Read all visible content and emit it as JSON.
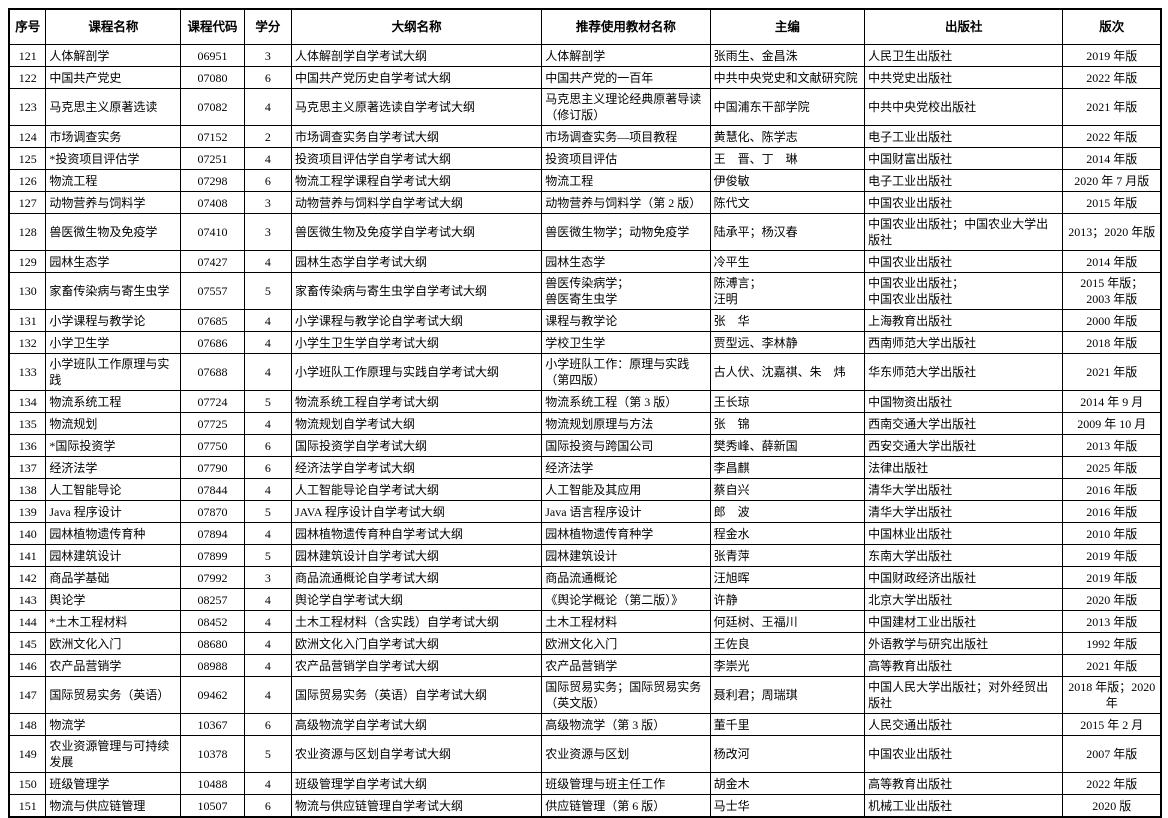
{
  "table": {
    "columns": [
      "序号",
      "课程名称",
      "课程代码",
      "学分",
      "大纲名称",
      "推荐使用教材名称",
      "主编",
      "出版社",
      "版次"
    ],
    "column_keys": [
      "seq",
      "course-name",
      "course-code",
      "credits",
      "outline-name",
      "textbook-name",
      "chief-editor",
      "publisher",
      "edition"
    ],
    "center_columns": [
      0,
      2,
      3,
      8
    ],
    "rows": [
      [
        "121",
        "人体解剖学",
        "06951",
        "3",
        "人体解剖学自学考试大纲",
        "人体解剖学",
        "张雨生、金昌洙",
        "人民卫生出版社",
        "2019 年版"
      ],
      [
        "122",
        "中国共产党史",
        "07080",
        "6",
        "中国共产党历史自学考试大纲",
        "中国共产党的一百年",
        "中共中央党史和文献研究院",
        "中共党史出版社",
        "2022 年版"
      ],
      [
        "123",
        "马克思主义原著选读",
        "07082",
        "4",
        "马克思主义原著选读自学考试大纲",
        "马克思主义理论经典原著导读（修订版）",
        "中国浦东干部学院",
        "中共中央党校出版社",
        "2021 年版"
      ],
      [
        "124",
        "市场调查实务",
        "07152",
        "2",
        "市场调查实务自学考试大纲",
        "市场调查实务—项目教程",
        "黄慧化、陈学志",
        "电子工业出版社",
        "2022 年版"
      ],
      [
        "125",
        "*投资项目评估学",
        "07251",
        "4",
        "投资项目评估学自学考试大纲",
        "投资项目评估",
        "王　晋、丁　琳",
        "中国财富出版社",
        "2014 年版"
      ],
      [
        "126",
        "物流工程",
        "07298",
        "6",
        "物流工程学课程自学考试大纲",
        "物流工程",
        "伊俊敏",
        "电子工业出版社",
        "2020 年 7 月版"
      ],
      [
        "127",
        "动物营养与饲料学",
        "07408",
        "3",
        "动物营养与饲料学自学考试大纲",
        "动物营养与饲料学（第 2 版）",
        "陈代文",
        "中国农业出版社",
        "2015 年版"
      ],
      [
        "128",
        "兽医微生物及免疫学",
        "07410",
        "3",
        "兽医微生物及免疫学自学考试大纲",
        "兽医微生物学；动物免疫学",
        "陆承平；杨汉春",
        "中国农业出版社；中国农业大学出版社",
        "2013；2020 年版"
      ],
      [
        "129",
        "园林生态学",
        "07427",
        "4",
        "园林生态学自学考试大纲",
        "园林生态学",
        "冷平生",
        "中国农业出版社",
        "2014 年版"
      ],
      [
        "130",
        "家畜传染病与寄生虫学",
        "07557",
        "5",
        "家畜传染病与寄生虫学自学考试大纲",
        "兽医传染病学；\n兽医寄生虫学",
        "陈溥言；\n汪明",
        "中国农业出版社；\n中国农业出版社",
        "2015 年版；\n2003 年版"
      ],
      [
        "131",
        "小学课程与教学论",
        "07685",
        "4",
        "小学课程与教学论自学考试大纲",
        "课程与教学论",
        "张　华",
        "上海教育出版社",
        "2000 年版"
      ],
      [
        "132",
        "小学卫生学",
        "07686",
        "4",
        "小学生卫生学自学考试大纲",
        "学校卫生学",
        "贾型远、李林静",
        "西南师范大学出版社",
        "2018 年版"
      ],
      [
        "133",
        "小学班队工作原理与实践",
        "07688",
        "4",
        "小学班队工作原理与实践自学考试大纲",
        "小学班队工作：原理与实践（第四版）",
        "古人伏、沈嘉祺、朱　炜",
        "华东师范大学出版社",
        "2021 年版"
      ],
      [
        "134",
        "物流系统工程",
        "07724",
        "5",
        "物流系统工程自学考试大纲",
        "物流系统工程（第 3 版）",
        "王长琼",
        "中国物资出版社",
        "2014 年 9 月"
      ],
      [
        "135",
        "物流规划",
        "07725",
        "4",
        "物流规划自学考试大纲",
        "物流规划原理与方法",
        "张　锦",
        "西南交通大学出版社",
        "2009 年 10 月"
      ],
      [
        "136",
        "*国际投资学",
        "07750",
        "6",
        "国际投资学自学考试大纲",
        "国际投资与跨国公司",
        "樊秀峰、薛新国",
        "西安交通大学出版社",
        "2013 年版"
      ],
      [
        "137",
        "经济法学",
        "07790",
        "6",
        "经济法学自学考试大纲",
        "经济法学",
        "李昌麒",
        "法律出版社",
        "2025 年版"
      ],
      [
        "138",
        "人工智能导论",
        "07844",
        "4",
        "人工智能导论自学考试大纲",
        "人工智能及其应用",
        "蔡自兴",
        "清华大学出版社",
        "2016 年版"
      ],
      [
        "139",
        "Java 程序设计",
        "07870",
        "5",
        "JAVA 程序设计自学考试大纲",
        "Java 语言程序设计",
        "郎　波",
        "清华大学出版社",
        "2016 年版"
      ],
      [
        "140",
        "园林植物遗传育种",
        "07894",
        "4",
        "园林植物遗传育种自学考试大纲",
        "园林植物遗传育种学",
        "程金水",
        "中国林业出版社",
        "2010 年版"
      ],
      [
        "141",
        "园林建筑设计",
        "07899",
        "5",
        "园林建筑设计自学考试大纲",
        "园林建筑设计",
        "张青萍",
        "东南大学出版社",
        "2019 年版"
      ],
      [
        "142",
        "商品学基础",
        "07992",
        "3",
        "商品流通概论自学考试大纲",
        "商品流通概论",
        "汪旭晖",
        "中国财政经济出版社",
        "2019 年版"
      ],
      [
        "143",
        "舆论学",
        "08257",
        "4",
        "舆论学自学考试大纲",
        "《舆论学概论（第二版）》",
        "许静",
        "北京大学出版社",
        "2020 年版"
      ],
      [
        "144",
        "*土木工程材料",
        "08452",
        "4",
        "土木工程材料（含实践）自学考试大纲",
        "土木工程材料",
        "何廷树、王福川",
        "中国建材工业出版社",
        "2013 年版"
      ],
      [
        "145",
        "欧洲文化入门",
        "08680",
        "4",
        "欧洲文化入门自学考试大纲",
        "欧洲文化入门",
        "王佐良",
        "外语教学与研究出版社",
        "1992 年版"
      ],
      [
        "146",
        "农产品营销学",
        "08988",
        "4",
        "农产品营销学自学考试大纲",
        "农产品营销学",
        "李崇光",
        "高等教育出版社",
        "2021 年版"
      ],
      [
        "147",
        "国际贸易实务（英语）",
        "09462",
        "4",
        "国际贸易实务（英语）自学考试大纲",
        "国际贸易实务；国际贸易实务（英文版）",
        "聂利君；周瑞琪",
        "中国人民大学出版社；对外经贸出版社",
        "2018 年版；2020 年"
      ],
      [
        "148",
        "物流学",
        "10367",
        "6",
        "高级物流学自学考试大纲",
        "高级物流学（第 3 版）",
        "董千里",
        "人民交通出版社",
        "2015 年 2 月"
      ],
      [
        "149",
        "农业资源管理与可持续发展",
        "10378",
        "5",
        "农业资源与区划自学考试大纲",
        "农业资源与区划",
        "杨改河",
        "中国农业出版社",
        "2007 年版"
      ],
      [
        "150",
        "班级管理学",
        "10488",
        "4",
        "班级管理学自学考试大纲",
        "班级管理与班主任工作",
        "胡金木",
        "高等教育出版社",
        "2022 年版"
      ],
      [
        "151",
        "物流与供应链管理",
        "10507",
        "6",
        "物流与供应链管理自学考试大纲",
        "供应链管理（第 6 版）",
        "马士华",
        "机械工业出版社",
        "2020 版"
      ]
    ]
  }
}
